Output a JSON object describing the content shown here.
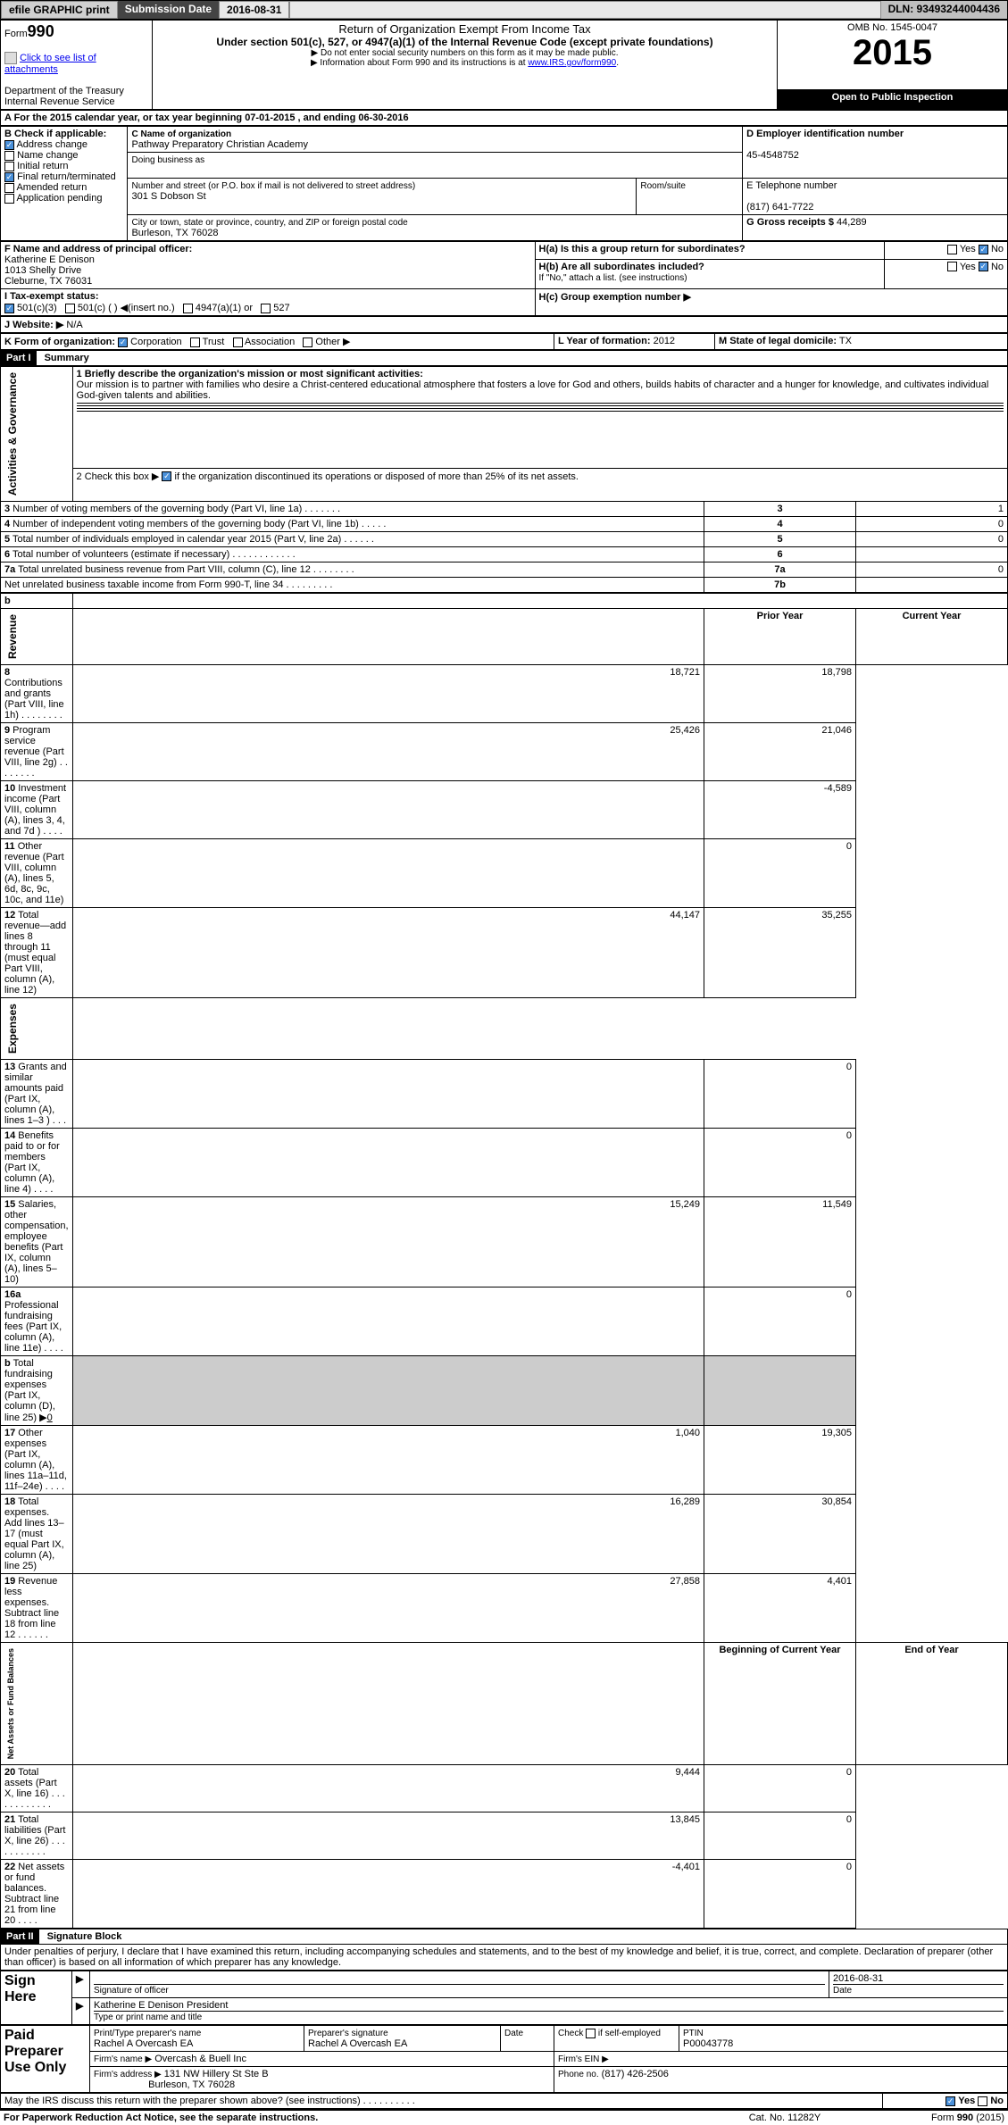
{
  "topbar": {
    "efile": "efile GRAPHIC print",
    "subdate_label": "Submission Date",
    "subdate": "2016-08-31",
    "dln": "DLN: 93493244004436"
  },
  "header": {
    "form_label": "Form",
    "form_num": "990",
    "title": "Return of Organization Exempt From Income Tax",
    "subtitle": "Under section 501(c), 527, or 4947(a)(1) of the Internal Revenue Code (except private foundations)",
    "note1": "▶ Do not enter social security numbers on this form as it may be made public.",
    "note2_pre": "▶ Information about Form 990 and its instructions is at ",
    "note2_link": "www.IRS.gov/form990",
    "note2_post": ".",
    "dept": "Department of the Treasury",
    "irs": "Internal Revenue Service",
    "omb": "OMB No. 1545-0047",
    "year": "2015",
    "inspect": "Open to Public Inspection",
    "attach_link": "Click to see list of attachments"
  },
  "A": {
    "text": "A For the 2015 calendar year, or tax year beginning 07-01-2015    , and ending 06-30-2016"
  },
  "B": {
    "label": "B Check if applicable:",
    "items": [
      {
        "label": "Address change",
        "checked": true
      },
      {
        "label": "Name change",
        "checked": false
      },
      {
        "label": "Initial return",
        "checked": false
      },
      {
        "label": "Final return/terminated",
        "checked": true
      },
      {
        "label": "Amended return",
        "checked": false
      },
      {
        "label": "Application pending",
        "checked": false
      }
    ]
  },
  "C": {
    "name_label": "C Name of organization",
    "name": "Pathway Preparatory Christian Academy",
    "dba_label": "Doing business as",
    "dba": "",
    "street_label": "Number and street (or P.O. box if mail is not delivered to street address)",
    "room_label": "Room/suite",
    "street": "301 S Dobson St",
    "city_label": "City or town, state or province, country, and ZIP or foreign postal code",
    "city": "Burleson, TX  76028"
  },
  "D": {
    "label": "D Employer identification number",
    "value": "45-4548752"
  },
  "E": {
    "label": "E Telephone number",
    "value": "(817) 641-7722"
  },
  "F": {
    "label": "F Name and address of principal officer:",
    "name": "Katherine E Denison",
    "addr1": "1013 Shelly Drive",
    "addr2": "Cleburne, TX  76031"
  },
  "G": {
    "label": "G Gross receipts $",
    "value": "44,289"
  },
  "H": {
    "a": "H(a)  Is this a group return for subordinates?",
    "b": "H(b)  Are all subordinates included?",
    "b_note": "If \"No,\" attach a list. (see instructions)",
    "c": "H(c)  Group exemption number ▶",
    "yes": "Yes",
    "no": "No",
    "a_yes": false,
    "a_no": true,
    "b_yes": false,
    "b_no": true
  },
  "I": {
    "label": "I   Tax-exempt status:",
    "opts": [
      "501(c)(3)",
      "501(c) (   ) ◀(insert no.)",
      "4947(a)(1) or",
      "527"
    ],
    "checked_idx": 0
  },
  "J": {
    "label": "J   Website: ▶",
    "value": "N/A"
  },
  "K": {
    "label": "K Form of organization:",
    "opts": [
      "Corporation",
      "Trust",
      "Association",
      "Other ▶"
    ],
    "checked_idx": 0
  },
  "L": {
    "label": "L Year of formation:",
    "value": "2012"
  },
  "M": {
    "label": "M State of legal domicile:",
    "value": "TX"
  },
  "part1": {
    "header": "Part I",
    "title": "Summary",
    "q1_label": "1  Briefly describe the organization's mission or most significant activities:",
    "q1_text": "Our mission is to partner with families who desire a Christ-centered educational atmosphere that fosters a love for God and others, builds habits of character and a hunger for knowledge, and cultivates individual God-given talents and abilities.",
    "q2": "2  Check this box ▶    if the organization discontinued its operations or disposed of more than 25% of its net assets.",
    "q2_checked": true,
    "sections": {
      "activities": "Activities & Governance",
      "revenue": "Revenue",
      "expenses": "Expenses",
      "netassets": "Net Assets or Fund Balances"
    },
    "rows_gov": [
      {
        "n": "3",
        "t": "Number of voting members of the governing body (Part VI, line 1a)   .    .    .    .    .    .    .",
        "box": "3",
        "v": "1"
      },
      {
        "n": "4",
        "t": "Number of independent voting members of the governing body (Part VI, line 1b)   .    .    .    .    .",
        "box": "4",
        "v": "0"
      },
      {
        "n": "5",
        "t": "Total number of individuals employed in calendar year 2015 (Part V, line 2a)   .    .    .    .    .    .",
        "box": "5",
        "v": "0"
      },
      {
        "n": "6",
        "t": "Total number of volunteers (estimate if necessary)   .    .    .    .    .    .    .    .    .    .    .    .",
        "box": "6",
        "v": ""
      },
      {
        "n": "7a",
        "t": "Total unrelated business revenue from Part VIII, column (C), line 12   .    .    .    .    .    .    .    .",
        "box": "7a",
        "v": "0"
      },
      {
        "n": "",
        "t": "Net unrelated business taxable income from Form 990-T, line 34   .    .    .    .    .    .    .    .    .",
        "box": "7b",
        "v": ""
      }
    ],
    "col_prior": "Prior Year",
    "col_current": "Current Year",
    "rows_rev": [
      {
        "n": "8",
        "t": "Contributions and grants (Part VIII, line 1h)   .    .    .    .    .    .    .    .",
        "p": "18,721",
        "c": "18,798"
      },
      {
        "n": "9",
        "t": "Program service revenue (Part VIII, line 2g)   .    .    .    .    .    .    .    .",
        "p": "25,426",
        "c": "21,046"
      },
      {
        "n": "10",
        "t": "Investment income (Part VIII, column (A), lines 3, 4, and 7d )   .    .    .    .",
        "p": "",
        "c": "-4,589"
      },
      {
        "n": "11",
        "t": "Other revenue (Part VIII, column (A), lines 5, 6d, 8c, 9c, 10c, and 11e)",
        "p": "",
        "c": "0"
      },
      {
        "n": "12",
        "t": "Total revenue—add lines 8 through 11 (must equal Part VIII, column (A), line 12)",
        "p": "44,147",
        "c": "35,255"
      }
    ],
    "rows_exp": [
      {
        "n": "13",
        "t": "Grants and similar amounts paid (Part IX, column (A), lines 1–3 )   .    .    .",
        "p": "",
        "c": "0"
      },
      {
        "n": "14",
        "t": "Benefits paid to or for members (Part IX, column (A), line 4)   .    .    .    .",
        "p": "",
        "c": "0"
      },
      {
        "n": "15",
        "t": "Salaries, other compensation, employee benefits (Part IX, column (A), lines 5–10)",
        "p": "15,249",
        "c": "11,549"
      },
      {
        "n": "16a",
        "t": "Professional fundraising fees (Part IX, column (A), line 11e)   .    .    .    .",
        "p": "",
        "c": "0"
      },
      {
        "n": "b",
        "t": "Total fundraising expenses (Part IX, column (D), line 25) ▶",
        "v": "0",
        "p": null,
        "c": null
      },
      {
        "n": "17",
        "t": "Other expenses (Part IX, column (A), lines 11a–11d, 11f–24e)   .    .    .    .",
        "p": "1,040",
        "c": "19,305"
      },
      {
        "n": "18",
        "t": "Total expenses. Add lines 13–17 (must equal Part IX, column (A), line 25)",
        "p": "16,289",
        "c": "30,854"
      },
      {
        "n": "19",
        "t": "Revenue less expenses. Subtract line 18 from line 12   .    .    .    .    .    .",
        "p": "27,858",
        "c": "4,401"
      }
    ],
    "col_begin": "Beginning of Current Year",
    "col_end": "End of Year",
    "rows_net": [
      {
        "n": "20",
        "t": "Total assets (Part X, line 16)   .    .    .    .    .    .    .    .    .    .    .    .",
        "p": "9,444",
        "c": "0"
      },
      {
        "n": "21",
        "t": "Total liabilities (Part X, line 26)   .    .    .    .    .    .    .    .    .    .    .",
        "p": "13,845",
        "c": "0"
      },
      {
        "n": "22",
        "t": "Net assets or fund balances. Subtract line 21 from line 20   .    .    .    .",
        "p": "-4,401",
        "c": "0"
      }
    ]
  },
  "part2": {
    "header": "Part II",
    "title": "Signature Block",
    "decl": "Under penalties of perjury, I declare that I have examined this return, including accompanying schedules and statements, and to the best of my knowledge and belief, it is true, correct, and complete. Declaration of preparer (other than officer) is based on all information of which preparer has any knowledge.",
    "sign_here": "Sign Here",
    "sig_officer": "Signature of officer",
    "date_label": "Date",
    "sig_date": "2016-08-31",
    "officer_name": "Katherine E Denison  President",
    "type_name": "Type or print name and title",
    "paid": "Paid Preparer Use Only",
    "prep_name_label": "Print/Type preparer's name",
    "prep_name": "Rachel A Overcash EA",
    "prep_sig_label": "Preparer's signature",
    "prep_sig": "Rachel A Overcash EA",
    "prep_date_label": "Date",
    "check_self": "Check      if self-employed",
    "ptin_label": "PTIN",
    "ptin": "P00043778",
    "firm_name_label": "Firm's name    ▶",
    "firm_name": "Overcash & Buell Inc",
    "firm_ein_label": "Firm's EIN ▶",
    "firm_addr_label": "Firm's address ▶",
    "firm_addr1": "131 NW Hillery St Ste B",
    "firm_addr2": "Burleson, TX  76028",
    "firm_phone_label": "Phone no.",
    "firm_phone": "(817) 426-2506",
    "discuss": "May the IRS discuss this return with the preparer shown above? (see instructions)    .    .    .    .    .    .    .    .    .    .",
    "discuss_yes": true,
    "yes": "Yes",
    "no": "No"
  },
  "footer": {
    "pra": "For Paperwork Reduction Act Notice, see the separate instructions.",
    "cat": "Cat. No. 11282Y",
    "form": "Form 990 (2015)"
  }
}
